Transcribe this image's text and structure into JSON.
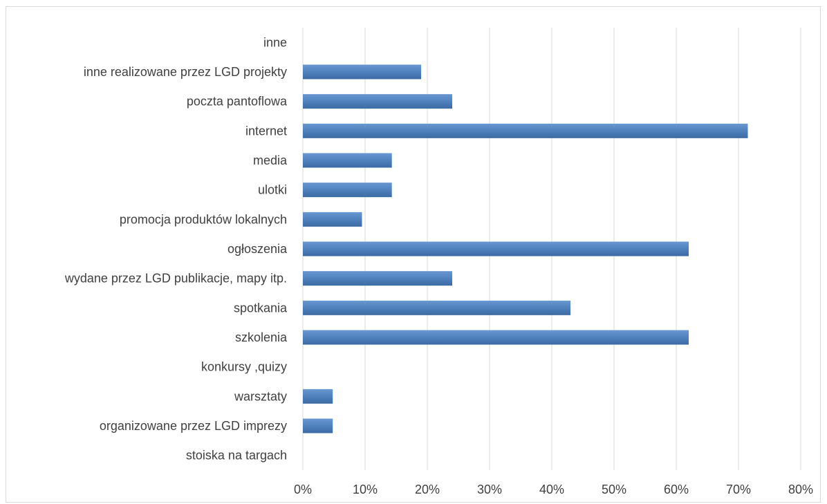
{
  "chart_data": {
    "type": "bar",
    "orientation": "horizontal",
    "title": "",
    "xlabel": "",
    "ylabel": "",
    "categories": [
      "inne",
      "inne realizowane przez LGD projekty",
      "poczta pantoflowa",
      "internet",
      "media",
      "ulotki",
      "promocja produktów lokalnych",
      "ogłoszenia",
      "wydane przez LGD publikacje, mapy itp.",
      "spotkania",
      "szkolenia",
      "konkursy ,quizy",
      "warsztaty",
      "organizowane przez LGD imprezy",
      "stoiska na targach"
    ],
    "values": [
      0,
      19,
      24,
      71.5,
      14.3,
      14.3,
      9.5,
      62,
      24,
      43,
      62,
      0,
      4.8,
      4.8,
      0
    ],
    "xlim": [
      0,
      80
    ],
    "xticks": [
      0,
      10,
      20,
      30,
      40,
      50,
      60,
      70,
      80
    ],
    "xtick_labels": [
      "0%",
      "10%",
      "20%",
      "30%",
      "40%",
      "50%",
      "60%",
      "70%",
      "80%"
    ],
    "grid": true,
    "legend": "none",
    "bar_color": "#4f81bd",
    "grid_color": "#d9d9d9"
  }
}
